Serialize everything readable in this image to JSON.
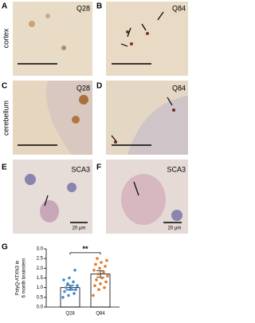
{
  "regions": [
    "cortex",
    "cerebellum"
  ],
  "panels": [
    {
      "letter": "A",
      "label": "Q28"
    },
    {
      "letter": "B",
      "label": "Q84"
    },
    {
      "letter": "C",
      "label": "Q28"
    },
    {
      "letter": "D",
      "label": "Q84"
    },
    {
      "letter": "E",
      "label": "SCA3",
      "scale": "20 µm"
    },
    {
      "letter": "F",
      "label": "SCA3",
      "scale": "20 µm"
    }
  ],
  "chart_data": {
    "type": "bar",
    "letter": "G",
    "ylabel": [
      "PolyQ-ATXN3 in",
      "6 month brainstem"
    ],
    "categories": [
      "Q28",
      "Q84"
    ],
    "values": [
      1.0,
      1.7
    ],
    "errors": [
      0.12,
      0.17
    ],
    "colors": [
      "#3d8fd8",
      "#e27a2c"
    ],
    "points": [
      [
        0.5,
        0.6,
        0.7,
        0.8,
        0.9,
        0.9,
        1.0,
        1.0,
        1.1,
        1.2,
        1.3,
        1.4,
        1.5,
        1.9
      ],
      [
        0.6,
        0.9,
        1.0,
        1.1,
        1.2,
        1.3,
        1.4,
        1.5,
        1.6,
        1.7,
        1.8,
        1.9,
        2.0,
        2.1,
        2.2,
        2.3,
        2.4,
        2.5
      ]
    ],
    "significance": "**",
    "ylim": [
      0,
      3
    ],
    "yticks": [
      {
        "value": 0,
        "label": "0.0"
      },
      {
        "value": 0.5,
        "label": "0.5"
      },
      {
        "value": 1,
        "label": "1.0"
      },
      {
        "value": 1.5,
        "label": "1.5"
      },
      {
        "value": 2,
        "label": "2.0"
      },
      {
        "value": 2.5,
        "label": "2.5"
      },
      {
        "value": 3,
        "label": "3.0"
      }
    ]
  }
}
